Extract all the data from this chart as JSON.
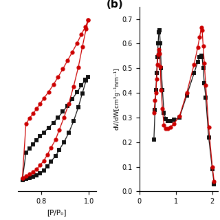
{
  "panel_a": {
    "black_ads_x": [
      0.72,
      0.735,
      0.75,
      0.765,
      0.78,
      0.795,
      0.81,
      0.825,
      0.84,
      0.86,
      0.875,
      0.895,
      0.915,
      0.935,
      0.955,
      0.972,
      0.988,
      0.997
    ],
    "black_ads_y": [
      0.28,
      0.282,
      0.285,
      0.288,
      0.292,
      0.298,
      0.305,
      0.315,
      0.328,
      0.342,
      0.358,
      0.378,
      0.402,
      0.432,
      0.468,
      0.505,
      0.538,
      0.548
    ],
    "black_des_x": [
      0.997,
      0.985,
      0.968,
      0.95,
      0.93,
      0.91,
      0.89,
      0.87,
      0.85,
      0.83,
      0.81,
      0.795,
      0.78,
      0.765,
      0.75,
      0.735,
      0.72
    ],
    "black_des_y": [
      0.548,
      0.54,
      0.525,
      0.508,
      0.49,
      0.473,
      0.457,
      0.442,
      0.428,
      0.415,
      0.403,
      0.393,
      0.383,
      0.373,
      0.362,
      0.35,
      0.28
    ],
    "red_ads_x": [
      0.72,
      0.735,
      0.75,
      0.765,
      0.78,
      0.795,
      0.81,
      0.825,
      0.84,
      0.86,
      0.875,
      0.895,
      0.915,
      0.935,
      0.955,
      0.972,
      0.988,
      0.997
    ],
    "red_ads_y": [
      0.285,
      0.29,
      0.295,
      0.3,
      0.308,
      0.318,
      0.33,
      0.345,
      0.363,
      0.385,
      0.41,
      0.442,
      0.478,
      0.522,
      0.572,
      0.625,
      0.672,
      0.695
    ],
    "red_des_x": [
      0.997,
      0.985,
      0.968,
      0.95,
      0.93,
      0.91,
      0.89,
      0.87,
      0.85,
      0.83,
      0.81,
      0.795,
      0.78,
      0.765,
      0.75,
      0.735,
      0.72
    ],
    "red_des_y": [
      0.695,
      0.678,
      0.658,
      0.635,
      0.612,
      0.59,
      0.568,
      0.547,
      0.527,
      0.508,
      0.492,
      0.478,
      0.465,
      0.452,
      0.44,
      0.425,
      0.285
    ],
    "xlabel": "[P/P₀]",
    "xlim": [
      0.7,
      1.03
    ],
    "xticks": [
      0.8,
      1.0
    ],
    "ylim": [
      0.25,
      0.73
    ],
    "yticks": []
  },
  "panel_b": {
    "black_x": [
      0.4,
      0.43,
      0.455,
      0.475,
      0.495,
      0.515,
      0.535,
      0.555,
      0.575,
      0.6,
      0.635,
      0.675,
      0.72,
      0.78,
      0.85,
      0.95,
      1.1,
      1.3,
      1.5,
      1.6,
      1.65,
      1.7,
      1.72,
      1.75,
      1.78,
      1.82,
      1.9,
      2.0,
      2.05
    ],
    "black_y": [
      0.21,
      0.33,
      0.41,
      0.48,
      0.545,
      0.6,
      0.645,
      0.655,
      0.6,
      0.5,
      0.41,
      0.32,
      0.295,
      0.285,
      0.285,
      0.29,
      0.3,
      0.39,
      0.48,
      0.525,
      0.545,
      0.55,
      0.545,
      0.5,
      0.44,
      0.38,
      0.22,
      0.09,
      0.03
    ],
    "red_x": [
      0.4,
      0.43,
      0.455,
      0.475,
      0.495,
      0.515,
      0.535,
      0.555,
      0.575,
      0.6,
      0.635,
      0.675,
      0.72,
      0.78,
      0.85,
      0.95,
      1.1,
      1.3,
      1.5,
      1.6,
      1.65,
      1.7,
      1.72,
      1.75,
      1.78,
      1.82,
      1.9,
      2.0,
      2.05
    ],
    "red_y": [
      0.32,
      0.37,
      0.4,
      0.455,
      0.515,
      0.555,
      0.575,
      0.56,
      0.505,
      0.41,
      0.335,
      0.27,
      0.255,
      0.255,
      0.26,
      0.275,
      0.305,
      0.4,
      0.515,
      0.585,
      0.625,
      0.665,
      0.655,
      0.59,
      0.52,
      0.43,
      0.26,
      0.1,
      0.04
    ],
    "ylabel": "dV/dW[cm³g⁻¹nm⁻¹]",
    "xlim": [
      0.3,
      2.15
    ],
    "xticks": [
      0,
      1,
      2
    ],
    "ylim": [
      0.0,
      0.75
    ],
    "yticks": [
      0.0,
      0.1,
      0.2,
      0.3,
      0.4,
      0.5,
      0.6,
      0.7
    ],
    "label_b": "(b)"
  },
  "black_color": "#111111",
  "red_color": "#cc0000",
  "bg_color": "#ffffff",
  "linewidth": 0.9,
  "markersize": 4.5
}
